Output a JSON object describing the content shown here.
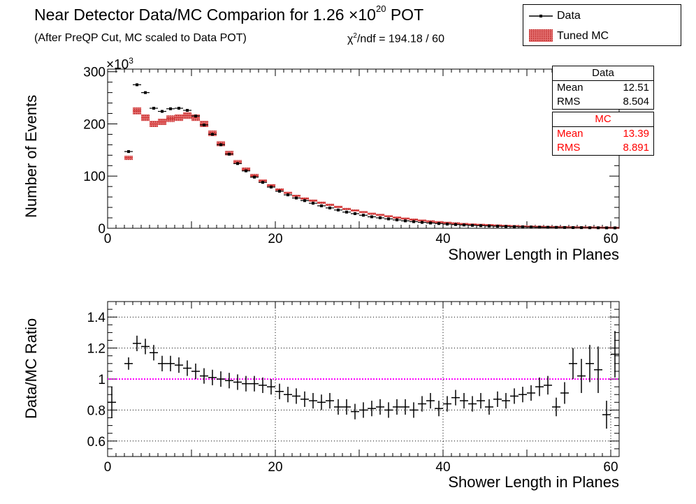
{
  "header": {
    "title_main": "Near Detector Data/MC Comparion for 1.26 ×10",
    "title_exp": "20",
    "title_end": " POT",
    "subtitle": "(After PreQP Cut, MC scaled to Data POT)",
    "chi_prefix": "χ",
    "chi_sup": "2",
    "chi_rest": "/ndf = 194.18 / 60"
  },
  "legend": {
    "data_label": "Data",
    "mc_label": "Tuned MC"
  },
  "stats": {
    "data": {
      "title": "Data",
      "mean_label": "Mean",
      "mean": "12.51",
      "rms_label": "RMS",
      "rms": "8.504"
    },
    "mc": {
      "title": "MC",
      "mean_label": "Mean",
      "mean": "13.39",
      "rms_label": "RMS",
      "rms": "8.891"
    }
  },
  "colors": {
    "data": "#000000",
    "mc": "#d32f2f",
    "mc_fill": "#e57373",
    "ratio_line": "#ff00ff"
  },
  "chart_data": [
    {
      "type": "scatter",
      "title": "Near Detector Data/MC Comparion for 1.26 ×10^20 POT",
      "xlabel": "Shower Length in Planes",
      "ylabel": "Number of Events",
      "y_multiplier_label_base": "×10",
      "y_multiplier_label_exp": "3",
      "xlim": [
        0,
        61
      ],
      "ylim": [
        0,
        305
      ],
      "xticks": [
        0,
        20,
        40,
        60
      ],
      "yticks": [
        0,
        100,
        200,
        300
      ],
      "grid": false,
      "series": [
        {
          "name": "Data",
          "x": [
            2.5,
            3.5,
            4.5,
            5.5,
            6.5,
            7.5,
            8.5,
            9.5,
            10.5,
            11.5,
            12.5,
            13.5,
            14.5,
            15.5,
            16.5,
            17.5,
            18.5,
            19.5,
            20.5,
            21.5,
            22.5,
            23.5,
            24.5,
            25.5,
            26.5,
            27.5,
            28.5,
            29.5,
            30.5,
            31.5,
            32.5,
            33.5,
            34.5,
            35.5,
            36.5,
            37.5,
            38.5,
            39.5,
            40.5,
            41.5,
            42.5,
            43.5,
            44.5,
            45.5,
            46.5,
            47.5,
            48.5,
            49.5,
            50.5,
            51.5,
            52.5,
            53.5,
            54.5,
            55.5,
            56.5,
            57.5,
            58.5,
            59.5,
            60.5
          ],
          "y": [
            147,
            275,
            260,
            230,
            224,
            229,
            230,
            226,
            215,
            198,
            180,
            160,
            142,
            124,
            110,
            98,
            88,
            79,
            71,
            64,
            58,
            53,
            48,
            43,
            39,
            35,
            31,
            28,
            25,
            22,
            20,
            18,
            16,
            14.2,
            12.7,
            11.3,
            10.1,
            9,
            8,
            7.1,
            6.3,
            5.6,
            5,
            4.4,
            3.9,
            3.5,
            3.1,
            2.7,
            2.4,
            2.1,
            1.9,
            1.7,
            1.5,
            1.3,
            1.2,
            1.05,
            0.95,
            0.85,
            0.75
          ]
        },
        {
          "name": "Tuned MC",
          "x": [
            2.5,
            3.5,
            4.5,
            5.5,
            6.5,
            7.5,
            8.5,
            9.5,
            10.5,
            11.5,
            12.5,
            13.5,
            14.5,
            15.5,
            16.5,
            17.5,
            18.5,
            19.5,
            20.5,
            21.5,
            22.5,
            23.5,
            24.5,
            25.5,
            26.5,
            27.5,
            28.5,
            29.5,
            30.5,
            31.5,
            32.5,
            33.5,
            34.5,
            35.5,
            36.5,
            37.5,
            38.5,
            39.5,
            40.5,
            41.5,
            42.5,
            43.5,
            44.5,
            45.5,
            46.5,
            47.5,
            48.5,
            49.5,
            50.5,
            51.5,
            52.5,
            53.5,
            54.5,
            55.5,
            56.5,
            57.5,
            58.5,
            59.5,
            60.5
          ],
          "y": [
            135,
            225,
            212,
            200,
            204,
            210,
            212,
            216,
            212,
            200,
            182,
            162,
            144,
            127,
            113,
            101,
            91,
            82,
            74,
            68,
            62,
            57,
            53,
            49,
            45,
            41,
            37,
            34,
            31,
            28,
            25.5,
            23,
            20.5,
            18.5,
            16.6,
            14.8,
            13.2,
            11.8,
            10.5,
            9.3,
            8.3,
            7.4,
            6.6,
            5.9,
            5.2,
            4.6,
            4.1,
            3.6,
            3.2,
            2.8,
            2.5,
            2.2,
            1.9,
            1.7,
            1.5,
            1.35,
            1.2,
            1.05,
            0.9
          ]
        }
      ]
    },
    {
      "type": "scatter",
      "xlabel": "Shower Length in Planes",
      "ylabel": "Data/MC Ratio",
      "xlim": [
        0,
        61
      ],
      "ylim": [
        0.5,
        1.5
      ],
      "xticks": [
        0,
        20,
        40,
        60
      ],
      "yticks": [
        0.6,
        0.8,
        1,
        1.2,
        1.4
      ],
      "ytick_labels": [
        "0.6",
        "0.8",
        "1",
        "1.2",
        "1.4"
      ],
      "grid": true,
      "reference_line": 1,
      "series": [
        {
          "name": "Data/MC Ratio",
          "x": [
            0.5,
            2.5,
            3.5,
            4.5,
            5.5,
            6.5,
            7.5,
            8.5,
            9.5,
            10.5,
            11.5,
            12.5,
            13.5,
            14.5,
            15.5,
            16.5,
            17.5,
            18.5,
            19.5,
            20.5,
            21.5,
            22.5,
            23.5,
            24.5,
            25.5,
            26.5,
            27.5,
            28.5,
            29.5,
            30.5,
            31.5,
            32.5,
            33.5,
            34.5,
            35.5,
            36.5,
            37.5,
            38.5,
            39.5,
            40.5,
            41.5,
            42.5,
            43.5,
            44.5,
            45.5,
            46.5,
            47.5,
            48.5,
            49.5,
            50.5,
            51.5,
            52.5,
            53.5,
            54.5,
            55.5,
            56.5,
            57.5,
            58.5,
            59.5,
            60.5
          ],
          "y": [
            0.85,
            1.1,
            1.23,
            1.21,
            1.17,
            1.1,
            1.1,
            1.09,
            1.07,
            1.05,
            1.02,
            1.01,
            1.0,
            0.99,
            0.98,
            0.97,
            0.97,
            0.96,
            0.95,
            0.92,
            0.9,
            0.89,
            0.87,
            0.86,
            0.85,
            0.86,
            0.82,
            0.82,
            0.79,
            0.8,
            0.81,
            0.82,
            0.8,
            0.82,
            0.82,
            0.8,
            0.84,
            0.86,
            0.81,
            0.84,
            0.88,
            0.86,
            0.84,
            0.86,
            0.82,
            0.87,
            0.86,
            0.89,
            0.9,
            0.91,
            0.95,
            0.96,
            0.82,
            0.91,
            1.1,
            1.02,
            1.1,
            1.06,
            0.77,
            1.16
          ],
          "yerr": [
            0.1,
            0.04,
            0.05,
            0.05,
            0.05,
            0.05,
            0.05,
            0.05,
            0.05,
            0.05,
            0.05,
            0.05,
            0.05,
            0.05,
            0.05,
            0.05,
            0.05,
            0.05,
            0.05,
            0.05,
            0.05,
            0.05,
            0.05,
            0.05,
            0.05,
            0.05,
            0.05,
            0.05,
            0.05,
            0.05,
            0.05,
            0.05,
            0.05,
            0.05,
            0.05,
            0.05,
            0.05,
            0.05,
            0.05,
            0.05,
            0.05,
            0.05,
            0.05,
            0.05,
            0.05,
            0.05,
            0.05,
            0.05,
            0.05,
            0.05,
            0.06,
            0.06,
            0.06,
            0.07,
            0.1,
            0.11,
            0.12,
            0.15,
            0.09,
            0.15
          ]
        }
      ]
    }
  ]
}
